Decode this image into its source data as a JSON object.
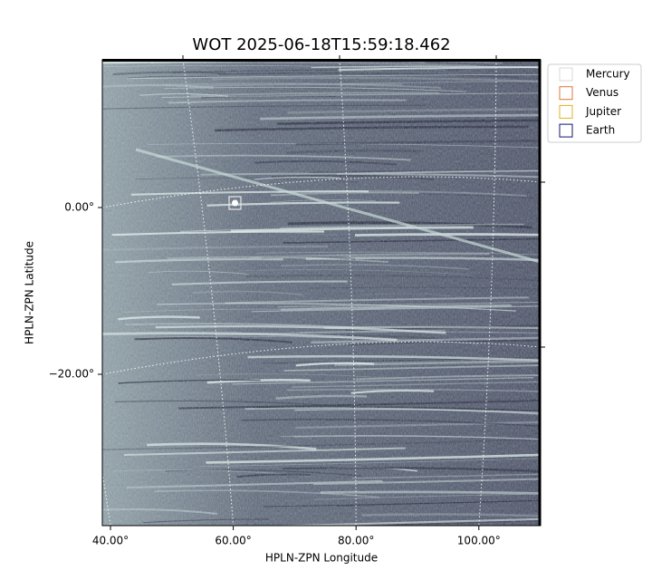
{
  "chart_data": {
    "type": "image",
    "title": "WOT 2025-06-18T15:59:18.462",
    "xlabel": "HPLN-ZPN Longitude",
    "ylabel": "HPLN-ZPN Latitude",
    "xticks": [
      {
        "value": 40,
        "label": "40.00°"
      },
      {
        "value": 60,
        "label": "60.00°"
      },
      {
        "value": 80,
        "label": "80.00°"
      },
      {
        "value": 100,
        "label": "100.00°"
      }
    ],
    "yticks": [
      {
        "value": 0,
        "label": "0.00°"
      },
      {
        "value": -20,
        "label": "−20.00°"
      }
    ],
    "grid": true,
    "series": [
      {
        "name": "Mercury",
        "color": "#d9d9d9"
      },
      {
        "name": "Venus",
        "color": "#e0743a"
      },
      {
        "name": "Jupiter",
        "color": "#e0b224"
      },
      {
        "name": "Earth",
        "color": "#14146e"
      }
    ]
  }
}
